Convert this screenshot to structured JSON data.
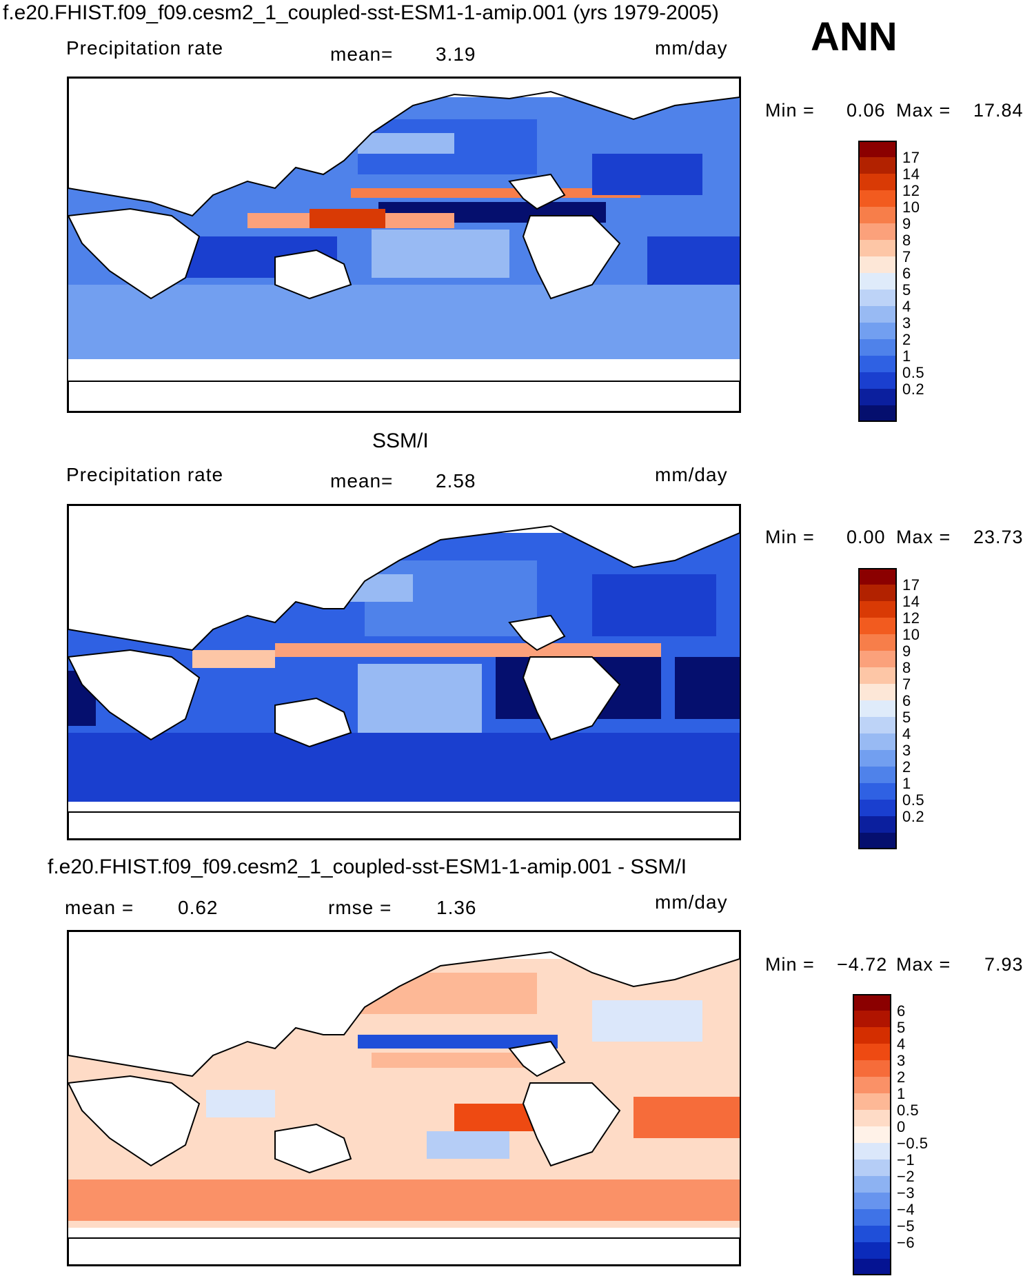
{
  "figure": {
    "title": "f.e20.FHIST.f09_f09.cesm2_1_coupled-sst-ESM1-1-amip.001 (yrs 1979-2005)",
    "season": "ANN"
  },
  "panels": [
    {
      "id": "model",
      "section_title": "",
      "variable": "Precipitation rate",
      "stat1_label": "mean=",
      "stat1_value": "3.19",
      "stat2_label": "",
      "stat2_value": "",
      "units": "mm/day",
      "min_label": "Min =",
      "min_value": "0.06",
      "max_label": "Max =",
      "max_value": "17.84",
      "palette": "precip",
      "colorbar_ticks": [
        "17",
        "14",
        "12",
        "10",
        "9",
        "8",
        "7",
        "6",
        "5",
        "4",
        "3",
        "2",
        "1",
        "0.5",
        "0.2"
      ],
      "colorbar_colors": [
        "#8b0000",
        "#b22200",
        "#d93a05",
        "#f25b1f",
        "#f77e4a",
        "#fba17b",
        "#fdc6a6",
        "#fde7d7",
        "#dfebfa",
        "#bdd3f7",
        "#98baf3",
        "#729ff0",
        "#4f82ea",
        "#2f61e3",
        "#1a3fcf",
        "#0b1f9e",
        "#050f6e"
      ]
    },
    {
      "id": "obs",
      "section_title": "SSM/I",
      "variable": "Precipitation rate",
      "stat1_label": "mean=",
      "stat1_value": "2.58",
      "stat2_label": "",
      "stat2_value": "",
      "units": "mm/day",
      "min_label": "Min =",
      "min_value": "0.00",
      "max_label": "Max =",
      "max_value": "23.73",
      "palette": "precip",
      "colorbar_ticks": [
        "17",
        "14",
        "12",
        "10",
        "9",
        "8",
        "7",
        "6",
        "5",
        "4",
        "3",
        "2",
        "1",
        "0.5",
        "0.2"
      ],
      "colorbar_colors": [
        "#8b0000",
        "#b22200",
        "#d93a05",
        "#f25b1f",
        "#f77e4a",
        "#fba17b",
        "#fdc6a6",
        "#fde7d7",
        "#dfebfa",
        "#bdd3f7",
        "#98baf3",
        "#729ff0",
        "#4f82ea",
        "#2f61e3",
        "#1a3fcf",
        "#0b1f9e",
        "#050f6e"
      ]
    },
    {
      "id": "diff",
      "section_title": "f.e20.FHIST.f09_f09.cesm2_1_coupled-sst-ESM1-1-amip.001 - SSM/I",
      "variable": "",
      "stat1_label": "mean =",
      "stat1_value": "0.62",
      "stat2_label": "rmse =",
      "stat2_value": "1.36",
      "units": "mm/day",
      "min_label": "Min =",
      "min_value": "−4.72",
      "max_label": "Max =",
      "max_value": "7.93",
      "palette": "diff",
      "colorbar_ticks": [
        "6",
        "5",
        "4",
        "3",
        "2",
        "1",
        "0.5",
        "0",
        "−0.5",
        "−1",
        "−2",
        "−3",
        "−4",
        "−5",
        "−6"
      ],
      "colorbar_colors": [
        "#8b0000",
        "#b01400",
        "#d42e00",
        "#ee4a12",
        "#f66c3a",
        "#fa9167",
        "#fdb896",
        "#fedbc6",
        "#fff2e8",
        "#dbe7fa",
        "#b5cdf6",
        "#8db2f2",
        "#6794ee",
        "#3f73e7",
        "#1f4fd9",
        "#0b2bbb",
        "#051392"
      ]
    }
  ]
}
